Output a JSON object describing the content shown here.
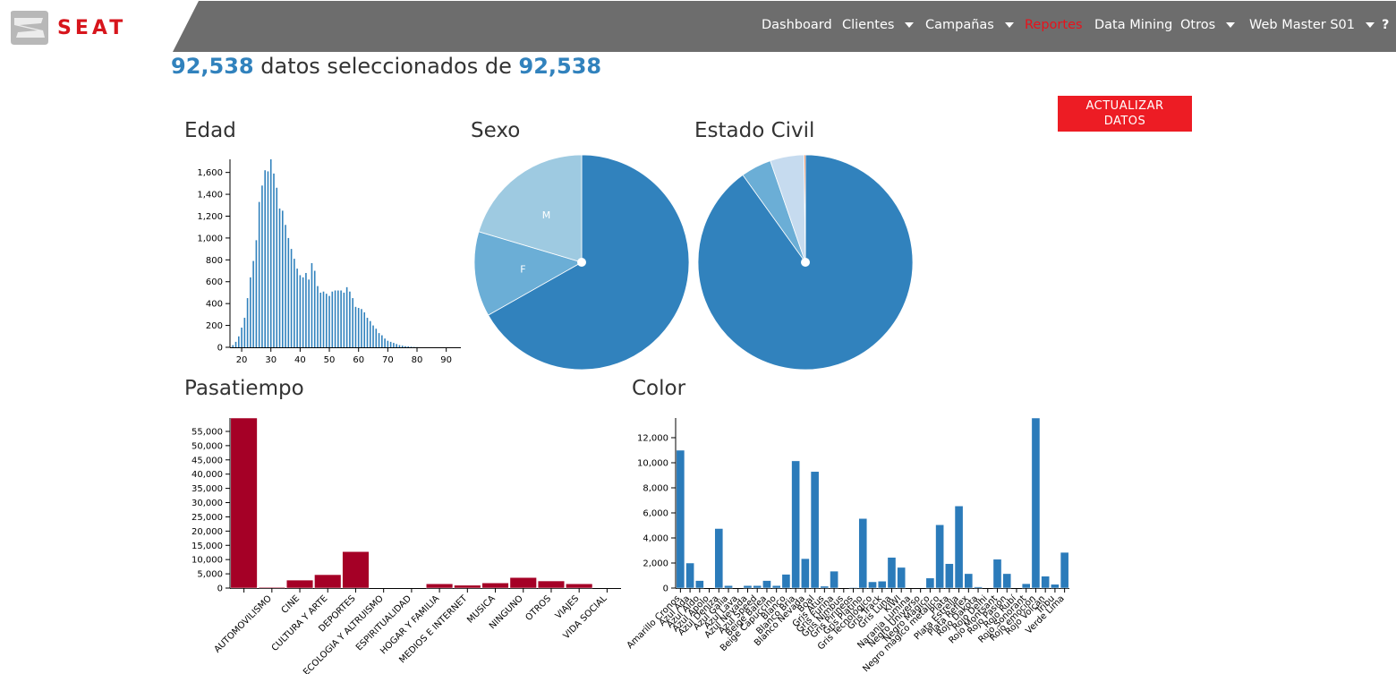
{
  "header": {
    "logo": "SEAT",
    "nav": [
      "Dashboard",
      "Clientes",
      "Campañas",
      "Reportes",
      "Data Mining",
      "Otros",
      "Web Master S01",
      "?"
    ]
  },
  "summary": {
    "selected": "92,538",
    "text": "datos seleccionados de",
    "total": "92,538"
  },
  "button": "ACTUALIZAR DATOS",
  "chart_data": [
    {
      "type": "bar",
      "title": "Edad",
      "color": "#3182bd",
      "x": [
        17,
        18,
        19,
        20,
        21,
        22,
        23,
        24,
        25,
        26,
        27,
        28,
        29,
        30,
        31,
        32,
        33,
        34,
        35,
        36,
        37,
        38,
        39,
        40,
        41,
        42,
        43,
        44,
        45,
        46,
        47,
        48,
        49,
        50,
        51,
        52,
        53,
        54,
        55,
        56,
        57,
        58,
        59,
        60,
        61,
        62,
        63,
        64,
        65,
        66,
        67,
        68,
        69,
        70,
        71,
        72,
        73,
        74,
        75,
        76,
        77,
        78,
        79,
        80
      ],
      "values": [
        20,
        50,
        100,
        180,
        270,
        450,
        640,
        790,
        980,
        1330,
        1480,
        1620,
        1610,
        1720,
        1590,
        1460,
        1270,
        1250,
        1120,
        1000,
        900,
        810,
        720,
        660,
        640,
        680,
        620,
        770,
        700,
        560,
        500,
        510,
        490,
        470,
        510,
        520,
        520,
        520,
        500,
        550,
        510,
        450,
        370,
        360,
        350,
        320,
        270,
        240,
        200,
        170,
        130,
        110,
        80,
        60,
        50,
        40,
        30,
        20,
        15,
        10,
        8,
        5,
        3,
        2
      ],
      "xlim": [
        16,
        95
      ],
      "xticks": [
        20,
        30,
        40,
        50,
        60,
        70,
        80,
        90
      ],
      "ylim": [
        0,
        1720
      ],
      "yticks": [
        0,
        200,
        400,
        600,
        800,
        {
          "value": 1000,
          "label": "1,000"
        },
        {
          "value": 1200,
          "label": "1,200"
        },
        {
          "value": 1400,
          "label": "1,400"
        },
        {
          "value": 1600,
          "label": "1,600"
        }
      ]
    },
    {
      "type": "pie",
      "title": "Sexo",
      "categories": [
        null,
        "F",
        "M"
      ],
      "values": [
        66.8,
        12.8,
        20.4
      ],
      "colors": [
        "#3182bd",
        "#6baed6",
        "#9ecae1"
      ]
    },
    {
      "type": "pie",
      "title": "Estado Civil",
      "categories": [
        null,
        null,
        null,
        null
      ],
      "values": [
        90.1,
        4.6,
        5.1,
        0.2
      ],
      "colors": [
        "#3182bd",
        "#6baed6",
        "#c6dbef",
        "#e6550d"
      ]
    },
    {
      "type": "bar",
      "title": "Pasatiempo",
      "color": "#a50026",
      "categories": [
        null,
        "AUTOMOVILISMO",
        "CINE",
        "CULTURA Y ARTE",
        "DEPORTES",
        "ECOLOGIA Y ALTRUISMO",
        "ESPIRITUALIDAD",
        "HOGAR Y FAMILIA",
        "MEDIOS E INTERNET",
        "MUSICA",
        "NINGUNO",
        "OTROS",
        "VIAJES",
        "VIDA SOCIAL"
      ],
      "values": [
        59700,
        300,
        2800,
        4700,
        12800,
        0,
        0,
        1500,
        1000,
        1800,
        3700,
        2500,
        1500,
        0
      ],
      "ylim": [
        0,
        59700
      ],
      "yticks": [
        0,
        {
          "value": 5000,
          "label": "5,000"
        },
        {
          "value": 10000,
          "label": "10,000"
        },
        {
          "value": 15000,
          "label": "15,000"
        },
        {
          "value": 20000,
          "label": "20,000"
        },
        {
          "value": 25000,
          "label": "25,000"
        },
        {
          "value": 30000,
          "label": "30,000"
        },
        {
          "value": 35000,
          "label": "35,000"
        },
        {
          "value": 40000,
          "label": "40,000"
        },
        {
          "value": 45000,
          "label": "45,000"
        },
        {
          "value": 50000,
          "label": "50,000"
        },
        {
          "value": 55000,
          "label": "55,000"
        }
      ]
    },
    {
      "type": "bar",
      "title": "Color",
      "color": "#2b7bba",
      "categories": [
        "Amarillo Cronos",
        "Azul Ada",
        "Azul Aldo",
        "Azul Apolo",
        "Azul Deniza",
        "Azul Galia",
        "Azul Lava",
        "Azul Nevada",
        "Azul Speed",
        "Beige Balea",
        "Beige Capuccino",
        "Blanco",
        "Blanco Bria",
        "Blanco Nevada",
        "Boal",
        "Gris Atus",
        "Gris Furina",
        "Gris Nimbus",
        "Gris Pirineos",
        "Gris Platino",
        "Gris Tecnológico",
        "Gris Track",
        "Gris Luna",
        "KIWI",
        "Naranja Lumina",
        "Negro Universo",
        "Negro Mágico",
        "Negro mágico metálico",
        "Plata",
        "Plata Estrella",
        "Plata Reflex",
        "Rojo Dakota",
        "Rojo Delhi",
        "Rojo Montsant",
        "Rojo Pasión",
        "Rojo Rubí",
        "Rojo Sonorant",
        "Rojo emoción",
        "Rojo Volcán",
        "Tribu",
        "Verde Lima"
      ],
      "values": [
        11000,
        2000,
        600,
        0,
        4750,
        200,
        0,
        200,
        200,
        600,
        200,
        1100,
        10150,
        2350,
        9300,
        150,
        1350,
        0,
        50,
        5550,
        500,
        550,
        2450,
        1650,
        0,
        0,
        800,
        5050,
        1950,
        6550,
        1150,
        100,
        0,
        2300,
        1150,
        0,
        350,
        13570,
        950,
        300,
        2850
      ],
      "ylim": [
        0,
        13570
      ],
      "yticks": [
        0,
        {
          "value": 2000,
          "label": "2,000"
        },
        {
          "value": 4000,
          "label": "4,000"
        },
        {
          "value": 6000,
          "label": "6,000"
        },
        {
          "value": 8000,
          "label": "8,000"
        },
        {
          "value": 10000,
          "label": "10,000"
        },
        {
          "value": 12000,
          "label": "12,000"
        }
      ]
    }
  ]
}
